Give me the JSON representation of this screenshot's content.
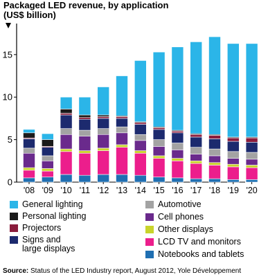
{
  "title": "Packaged LED revenue, by application",
  "subtitle": "(US$ billion)",
  "source_label": "Source:",
  "source_text": "Status of the LED Industry report, August 2012, Yole Développement",
  "chart_data": {
    "type": "bar",
    "stacked": true,
    "categories": [
      "'08",
      "'09",
      "'10",
      "'11",
      "'12",
      "'13",
      "'14",
      "'15",
      "'16",
      "'17",
      "'18",
      "'19",
      "'20"
    ],
    "ylim": [
      0,
      18
    ],
    "yticks": [
      0,
      5,
      10,
      15
    ],
    "grid": false,
    "legend_position": "bottom",
    "series": [
      {
        "name": "Notebooks and tablets",
        "color": "#1f6fb2",
        "values": [
          0.5,
          0.6,
          0.9,
          0.8,
          0.9,
          0.9,
          0.8,
          0.6,
          0.5,
          0.4,
          0.4,
          0.3,
          0.3
        ]
      },
      {
        "name": "LCD TV and monitors",
        "color": "#ec1e8c",
        "values": [
          0.9,
          0.7,
          2.7,
          2.6,
          2.8,
          3.2,
          2.6,
          2.2,
          2.0,
          1.8,
          1.6,
          1.5,
          1.4
        ]
      },
      {
        "name": "Other displays",
        "color": "#c9d42b",
        "values": [
          0.3,
          0.3,
          0.3,
          0.3,
          0.3,
          0.3,
          0.3,
          0.3,
          0.3,
          0.3,
          0.3,
          0.3,
          0.3
        ]
      },
      {
        "name": "Cell phones",
        "color": "#6a2a8c",
        "values": [
          1.7,
          0.9,
          1.7,
          1.7,
          1.6,
          1.4,
          1.2,
          1.1,
          1.0,
          0.8,
          0.8,
          0.7,
          0.7
        ]
      },
      {
        "name": "Automotive",
        "color": "#a3a3a3",
        "values": [
          0.6,
          0.6,
          0.7,
          0.7,
          0.7,
          0.7,
          0.7,
          0.8,
          0.8,
          0.8,
          0.8,
          0.8,
          0.8
        ]
      },
      {
        "name": "Signs and large displays",
        "color": "#1c2a6e",
        "values": [
          1.1,
          1.0,
          1.6,
          1.3,
          1.2,
          1.0,
          1.2,
          1.2,
          1.2,
          1.2,
          1.2,
          1.2,
          1.2
        ]
      },
      {
        "name": "Projectors",
        "color": "#8a1c3c",
        "values": [
          0.1,
          0.1,
          0.2,
          0.2,
          0.2,
          0.2,
          0.2,
          0.2,
          0.2,
          0.3,
          0.4,
          0.4,
          0.5
        ]
      },
      {
        "name": "Personal lighting",
        "color": "#1a1a1a",
        "values": [
          0.6,
          0.8,
          0.5,
          0.3,
          0.2,
          0.1,
          0.1,
          0.1,
          0.1,
          0.1,
          0.1,
          0.1,
          0.1
        ]
      },
      {
        "name": "General lighting",
        "color": "#2bb5e8",
        "values": [
          0.4,
          0.7,
          1.4,
          2.1,
          3.3,
          4.7,
          7.2,
          8.8,
          9.8,
          10.8,
          11.5,
          11.0,
          11.0
        ]
      }
    ],
    "legend_order": [
      "General lighting",
      "Personal lighting",
      "Projectors",
      "Signs and large displays",
      "Automotive",
      "Cell phones",
      "Other displays",
      "LCD TV and monitors",
      "Notebooks and tablets"
    ],
    "legend_labels": {
      "General lighting": [
        "General lighting"
      ],
      "Personal lighting": [
        "Personal lighting"
      ],
      "Projectors": [
        "Projectors"
      ],
      "Signs and large displays": [
        "Signs and",
        "large displays"
      ],
      "Automotive": [
        "Automotive"
      ],
      "Cell phones": [
        "Cell phones"
      ],
      "Other displays": [
        "Other displays"
      ],
      "LCD TV and monitors": [
        "LCD TV and monitors"
      ],
      "Notebooks and tablets": [
        "Notebooks and tablets"
      ]
    }
  }
}
